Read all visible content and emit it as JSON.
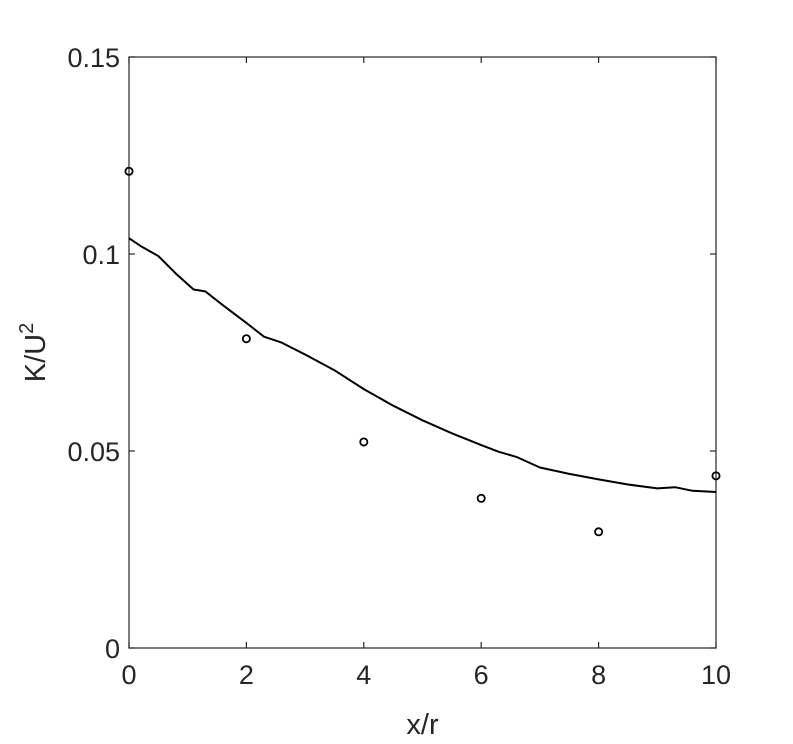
{
  "chart_data": {
    "type": "line",
    "xlabel": "x/r",
    "ylabel": {
      "base": "K/U",
      "superscript": "2"
    },
    "xlim": [
      0,
      10
    ],
    "ylim": [
      0,
      0.15
    ],
    "xticks": [
      0,
      2,
      4,
      6,
      8,
      10
    ],
    "xtick_labels": [
      "0",
      "2",
      "4",
      "6",
      "8",
      "10"
    ],
    "yticks": [
      0,
      0.05,
      0.1,
      0.15
    ],
    "ytick_labels": [
      "0",
      "0.05",
      "0.1",
      "0.15"
    ],
    "grid": false,
    "colors": {
      "axis": "#262626",
      "line": "#000000",
      "marker": "#000000",
      "background": "#ffffff"
    },
    "series": [
      {
        "kind": "line",
        "x": [
          0,
          0.2,
          0.5,
          0.8,
          1.1,
          1.3,
          1.6,
          2.0,
          2.3,
          2.6,
          3.0,
          3.5,
          4.0,
          4.5,
          5.0,
          5.5,
          6.0,
          6.3,
          6.6,
          7.0,
          7.5,
          8.0,
          8.5,
          9.0,
          9.3,
          9.6,
          10.0
        ],
        "y": [
          0.104,
          0.102,
          0.0995,
          0.095,
          0.091,
          0.0905,
          0.087,
          0.0825,
          0.079,
          0.0775,
          0.0745,
          0.0705,
          0.0657,
          0.0615,
          0.0578,
          0.0545,
          0.0515,
          0.0498,
          0.0485,
          0.0458,
          0.0442,
          0.0428,
          0.0415,
          0.0405,
          0.0408,
          0.0399,
          0.0396
        ]
      },
      {
        "kind": "scatter",
        "marker": "circle-open",
        "x": [
          0,
          2,
          4,
          6,
          8,
          10
        ],
        "y": [
          0.121,
          0.0785,
          0.0523,
          0.038,
          0.0295,
          0.0437
        ]
      }
    ]
  }
}
